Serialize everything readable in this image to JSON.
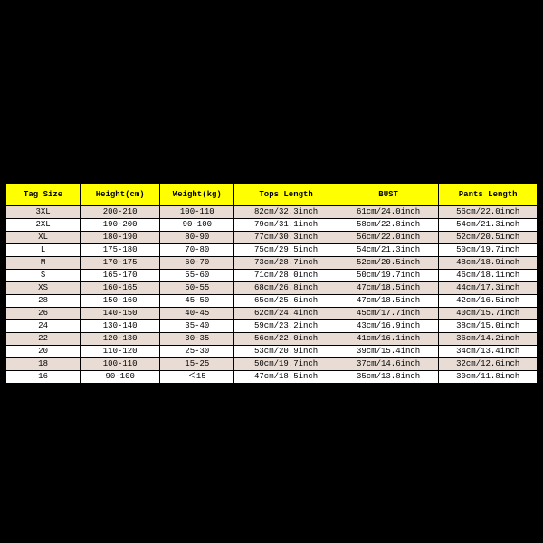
{
  "table": {
    "type": "table",
    "header_bg": "#ffff00",
    "row_odd_bg": "#e8dcd5",
    "row_even_bg": "#ffffff",
    "border_color": "#000000",
    "font_family": "Courier New",
    "header_fontsize": 9,
    "cell_fontsize": 9,
    "columns": [
      {
        "key": "tag",
        "label": "Tag Size",
        "width_pct": 14
      },
      {
        "key": "height",
        "label": "Height(cm)",
        "width_pct": 15
      },
      {
        "key": "weight",
        "label": "Weight(kg)",
        "width_pct": 14
      },
      {
        "key": "tops",
        "label": "Tops Length",
        "width_pct": 19.5
      },
      {
        "key": "bust",
        "label": "BUST",
        "width_pct": 19
      },
      {
        "key": "pants",
        "label": "Pants Length",
        "width_pct": 18.5
      }
    ],
    "rows": [
      [
        "3XL",
        "200-210",
        "100-110",
        "82cm/32.3inch",
        "61cm/24.0inch",
        "56cm/22.0inch"
      ],
      [
        "2XL",
        "190-200",
        "90-100",
        "79cm/31.1inch",
        "58cm/22.8inch",
        "54cm/21.3inch"
      ],
      [
        "XL",
        "180-190",
        "80-90",
        "77cm/30.3inch",
        "56cm/22.0inch",
        "52cm/20.5inch"
      ],
      [
        "L",
        "175-180",
        "70-80",
        "75cm/29.5inch",
        "54cm/21.3inch",
        "50cm/19.7inch"
      ],
      [
        "M",
        "170-175",
        "60-70",
        "73cm/28.7inch",
        "52cm/20.5inch",
        "48cm/18.9inch"
      ],
      [
        "S",
        "165-170",
        "55-60",
        "71cm/28.0inch",
        "50cm/19.7inch",
        "46cm/18.1inch"
      ],
      [
        "XS",
        "160-165",
        "50-55",
        "68cm/26.8inch",
        "47cm/18.5inch",
        "44cm/17.3inch"
      ],
      [
        "28",
        "150-160",
        "45-50",
        "65cm/25.6inch",
        "47cm/18.5inch",
        "42cm/16.5inch"
      ],
      [
        "26",
        "140-150",
        "40-45",
        "62cm/24.4inch",
        "45cm/17.7inch",
        "40cm/15.7inch"
      ],
      [
        "24",
        "130-140",
        "35-40",
        "59cm/23.2inch",
        "43cm/16.9inch",
        "38cm/15.0inch"
      ],
      [
        "22",
        "120-130",
        "30-35",
        "56cm/22.0inch",
        "41cm/16.1inch",
        "36cm/14.2inch"
      ],
      [
        "20",
        "110-120",
        "25-30",
        "53cm/20.9inch",
        "39cm/15.4inch",
        "34cm/13.4inch"
      ],
      [
        "18",
        "100-110",
        "15-25",
        "50cm/19.7inch",
        "37cm/14.6inch",
        "32cm/12.6inch"
      ],
      [
        "16",
        "90-100",
        "＜15",
        "47cm/18.5inch",
        "35cm/13.8inch",
        "30cm/11.8inch"
      ]
    ]
  }
}
